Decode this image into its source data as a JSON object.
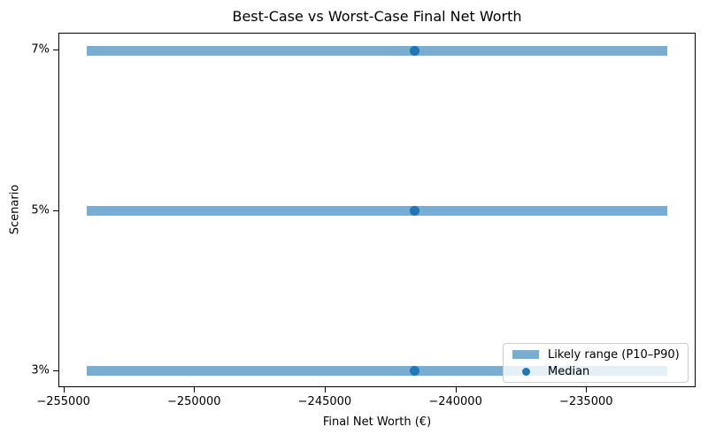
{
  "chart_data": {
    "type": "bar",
    "subtype": "horizontal-range-bars-with-median-markers",
    "title": "Best-Case vs Worst-Case Final Net Worth",
    "xlabel": "Final Net Worth (€)",
    "ylabel": "Scenario",
    "categories": [
      "7%",
      "5%",
      "3%"
    ],
    "series": [
      {
        "name": "Likely range (P10–P90)",
        "role": "range",
        "p10": [
          -254140,
          -254140,
          -254140
        ],
        "p90": [
          -231930,
          -231930,
          -231930
        ]
      },
      {
        "name": "Median",
        "role": "point",
        "values": [
          -241580,
          -241580,
          -241580
        ]
      }
    ],
    "xlim": [
      -255190,
      -230810
    ],
    "xticks": [
      {
        "value": -255000,
        "label": "−255000"
      },
      {
        "value": -250000,
        "label": "−250000"
      },
      {
        "value": -245000,
        "label": "−245000"
      },
      {
        "value": -240000,
        "label": "−240000"
      },
      {
        "value": -235000,
        "label": "−235000"
      }
    ],
    "grid": false,
    "legend": {
      "position": "lower right",
      "entries": [
        {
          "label": "Likely range (P10–P90)",
          "marker": "rect"
        },
        {
          "label": "Median",
          "marker": "dot"
        }
      ]
    },
    "colors": {
      "bar": "#1f77b4",
      "bar_alpha": 0.6,
      "bar_flat_on_white": "#79add2",
      "median_dot": "#1f77b4",
      "spine": "#000000",
      "legend_border": "#cccccc"
    }
  }
}
